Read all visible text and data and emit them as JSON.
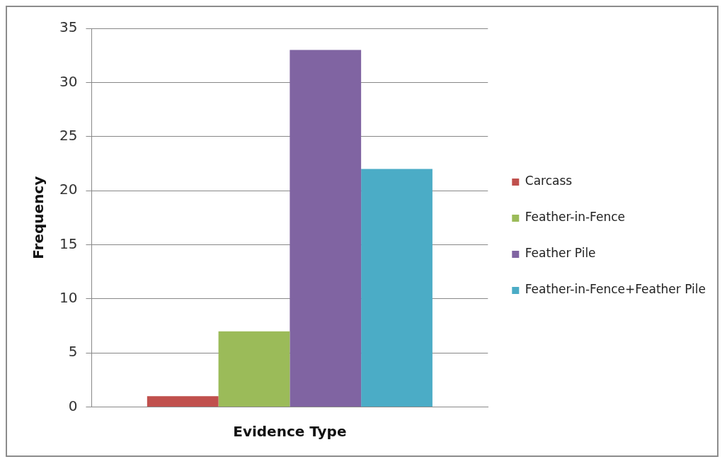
{
  "chart_data": {
    "type": "bar",
    "xlabel": "Evidence Type",
    "ylabel": "Frequency",
    "categories": [
      null
    ],
    "series": [
      {
        "name": "Carcass",
        "color": "#c0504d",
        "values": [
          1
        ]
      },
      {
        "name": "Feather-in-Fence",
        "color": "#9bbb59",
        "values": [
          7
        ]
      },
      {
        "name": "Feather Pile",
        "color": "#8064a2",
        "values": [
          33
        ]
      },
      {
        "name": "Feather-in-Fence+Feather Pile",
        "color": "#4bacc6",
        "values": [
          22
        ]
      }
    ],
    "ylim": [
      0,
      35
    ],
    "yticks": [
      0,
      5,
      10,
      15,
      20,
      25,
      30,
      35
    ],
    "grid": "y",
    "legend": "right"
  }
}
